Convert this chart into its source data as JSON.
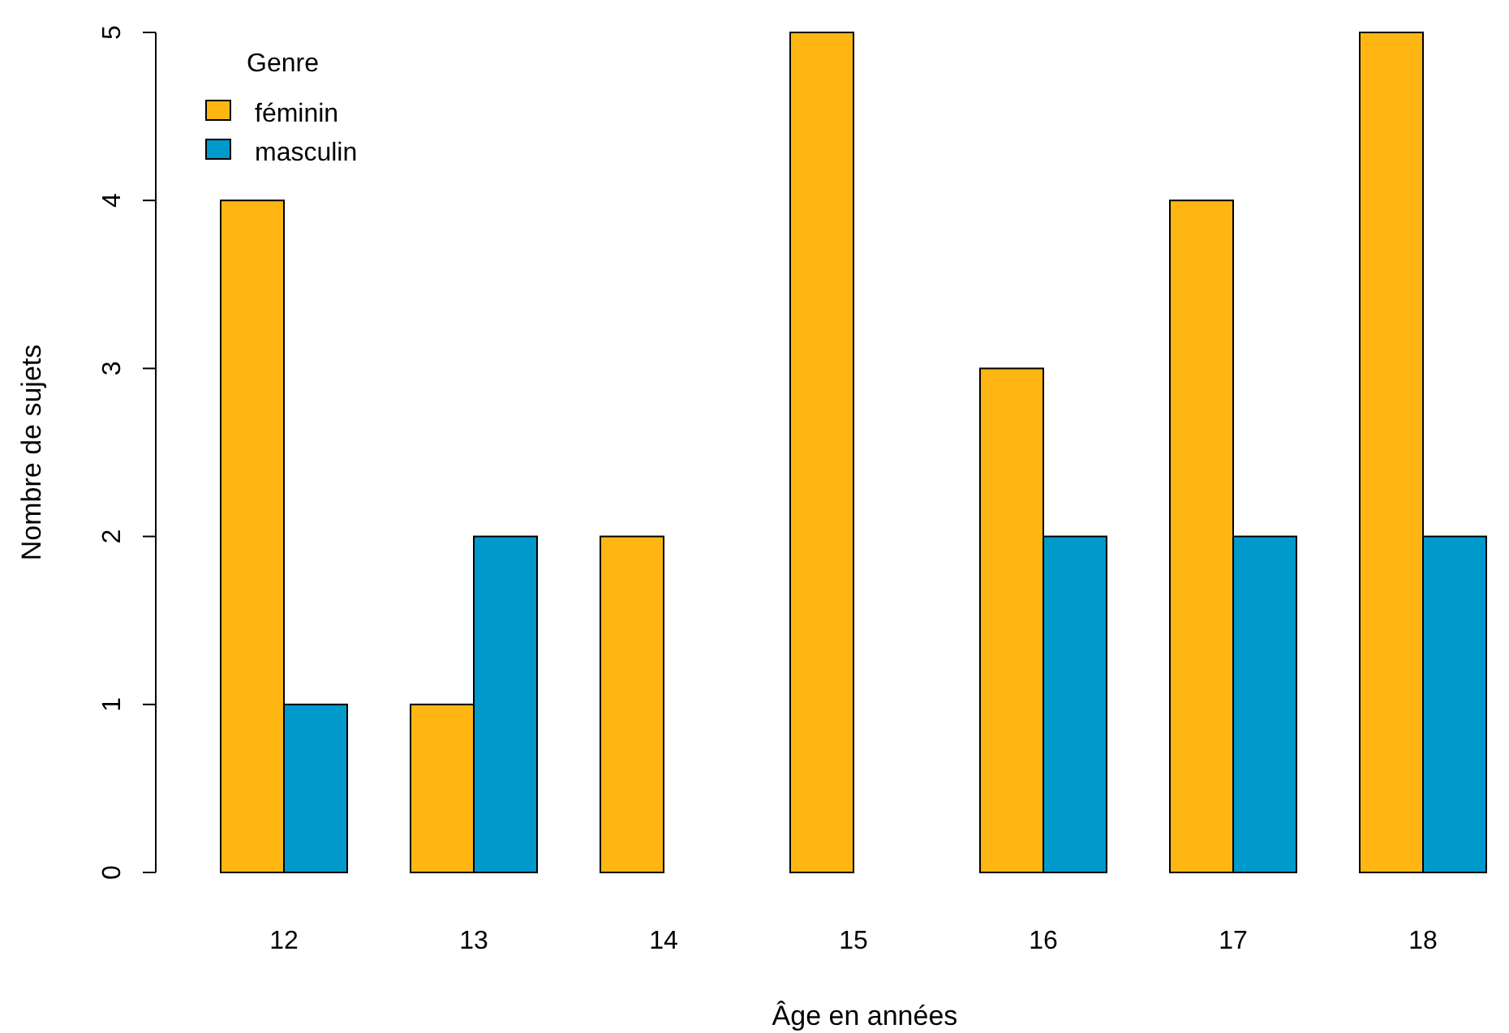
{
  "chart_data": {
    "type": "bar",
    "xlabel": "Âge en années",
    "ylabel": "Nombre de sujets",
    "legend_title": "Genre",
    "legend": "top left",
    "categories": [
      "12",
      "13",
      "14",
      "15",
      "16",
      "17",
      "18"
    ],
    "series": [
      {
        "name": "féminin",
        "color": "#ffb612",
        "values": [
          4,
          1,
          2,
          5,
          3,
          4,
          5
        ]
      },
      {
        "name": "masculin",
        "color": "#0099cc",
        "values": [
          1,
          2,
          0,
          0,
          2,
          2,
          2
        ]
      }
    ],
    "ylim": [
      0,
      5
    ],
    "yticks": [
      0,
      1,
      2,
      3,
      4,
      5
    ]
  }
}
